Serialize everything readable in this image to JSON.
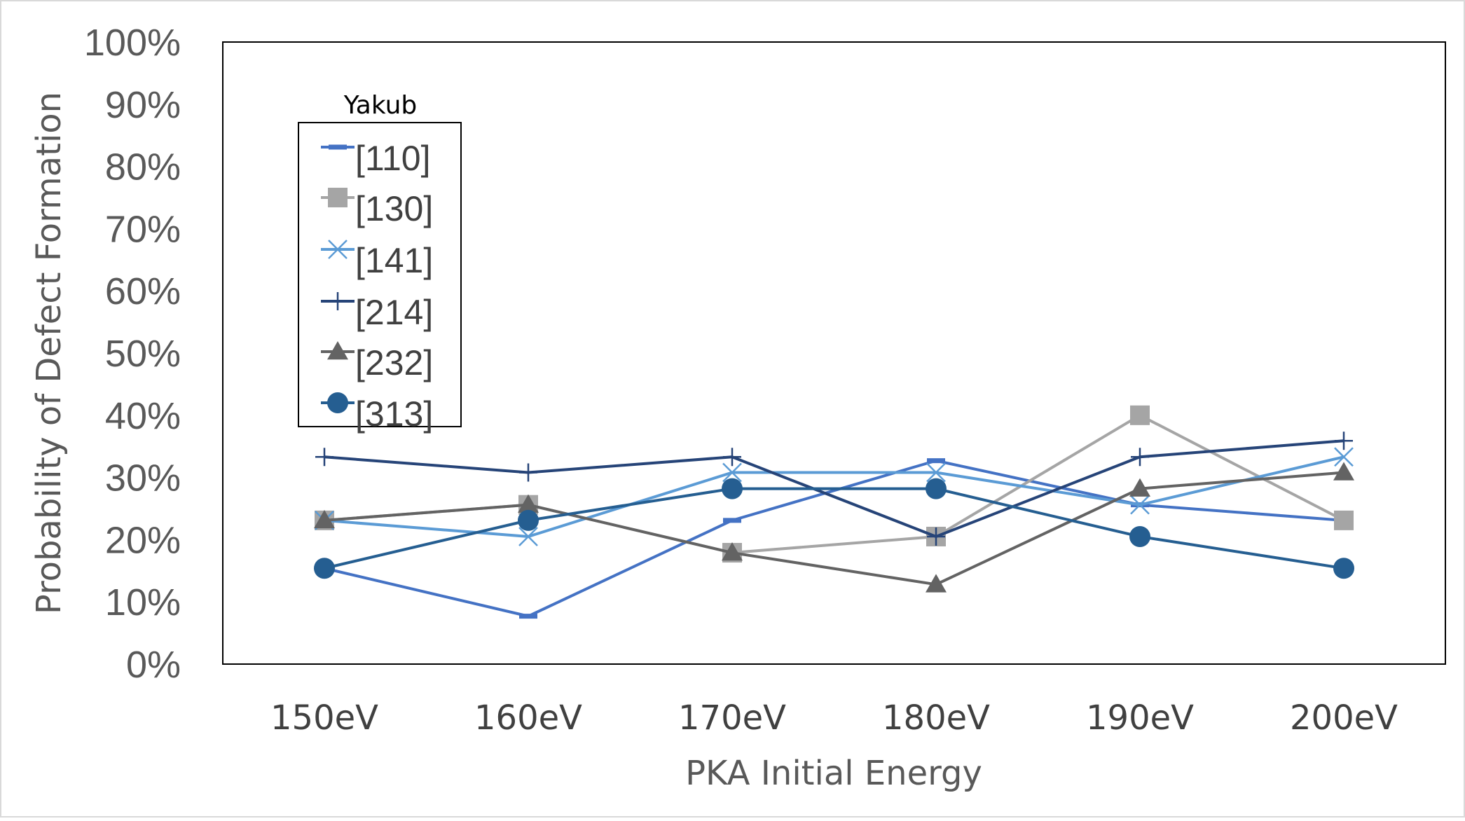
{
  "chart_data": {
    "type": "line",
    "title": "",
    "xlabel": "PKA Initial Energy",
    "ylabel": "Probability of Defect Formation",
    "categories": [
      "150eV",
      "160eV",
      "170eV",
      "180eV",
      "190eV",
      "200eV"
    ],
    "ylim": [
      0,
      100
    ],
    "yticks": [
      "0%",
      "10%",
      "20%",
      "30%",
      "40%",
      "50%",
      "60%",
      "70%",
      "80%",
      "90%",
      "100%"
    ],
    "grid": false,
    "legend": {
      "title": "Yakub",
      "placement": "top-left",
      "entries": [
        "[110]",
        "[130]",
        "[141]",
        "[214]",
        "[232]",
        "[313]"
      ]
    },
    "series": [
      {
        "name": "[110]",
        "values": [
          15.4,
          7.7,
          23.1,
          32.7,
          25.6,
          23.1
        ],
        "color": "#4472C4",
        "marker": "dash"
      },
      {
        "name": "[130]",
        "values": [
          23.1,
          25.6,
          17.9,
          20.5,
          40.0,
          23.1
        ],
        "color": "#A5A5A5",
        "marker": "square"
      },
      {
        "name": "[141]",
        "values": [
          23.1,
          20.5,
          30.8,
          30.8,
          25.6,
          33.3
        ],
        "color": "#5B9BD5",
        "marker": "x"
      },
      {
        "name": "[214]",
        "values": [
          33.3,
          30.8,
          33.3,
          20.5,
          33.3,
          35.9
        ],
        "color": "#264478",
        "marker": "plus"
      },
      {
        "name": "[232]",
        "values": [
          23.1,
          25.6,
          17.9,
          12.8,
          28.2,
          30.8
        ],
        "color": "#636363",
        "marker": "triangle"
      },
      {
        "name": "[313]",
        "values": [
          15.4,
          23.1,
          28.2,
          28.2,
          20.5,
          15.4
        ],
        "color": "#255E91",
        "marker": "circle"
      }
    ]
  }
}
